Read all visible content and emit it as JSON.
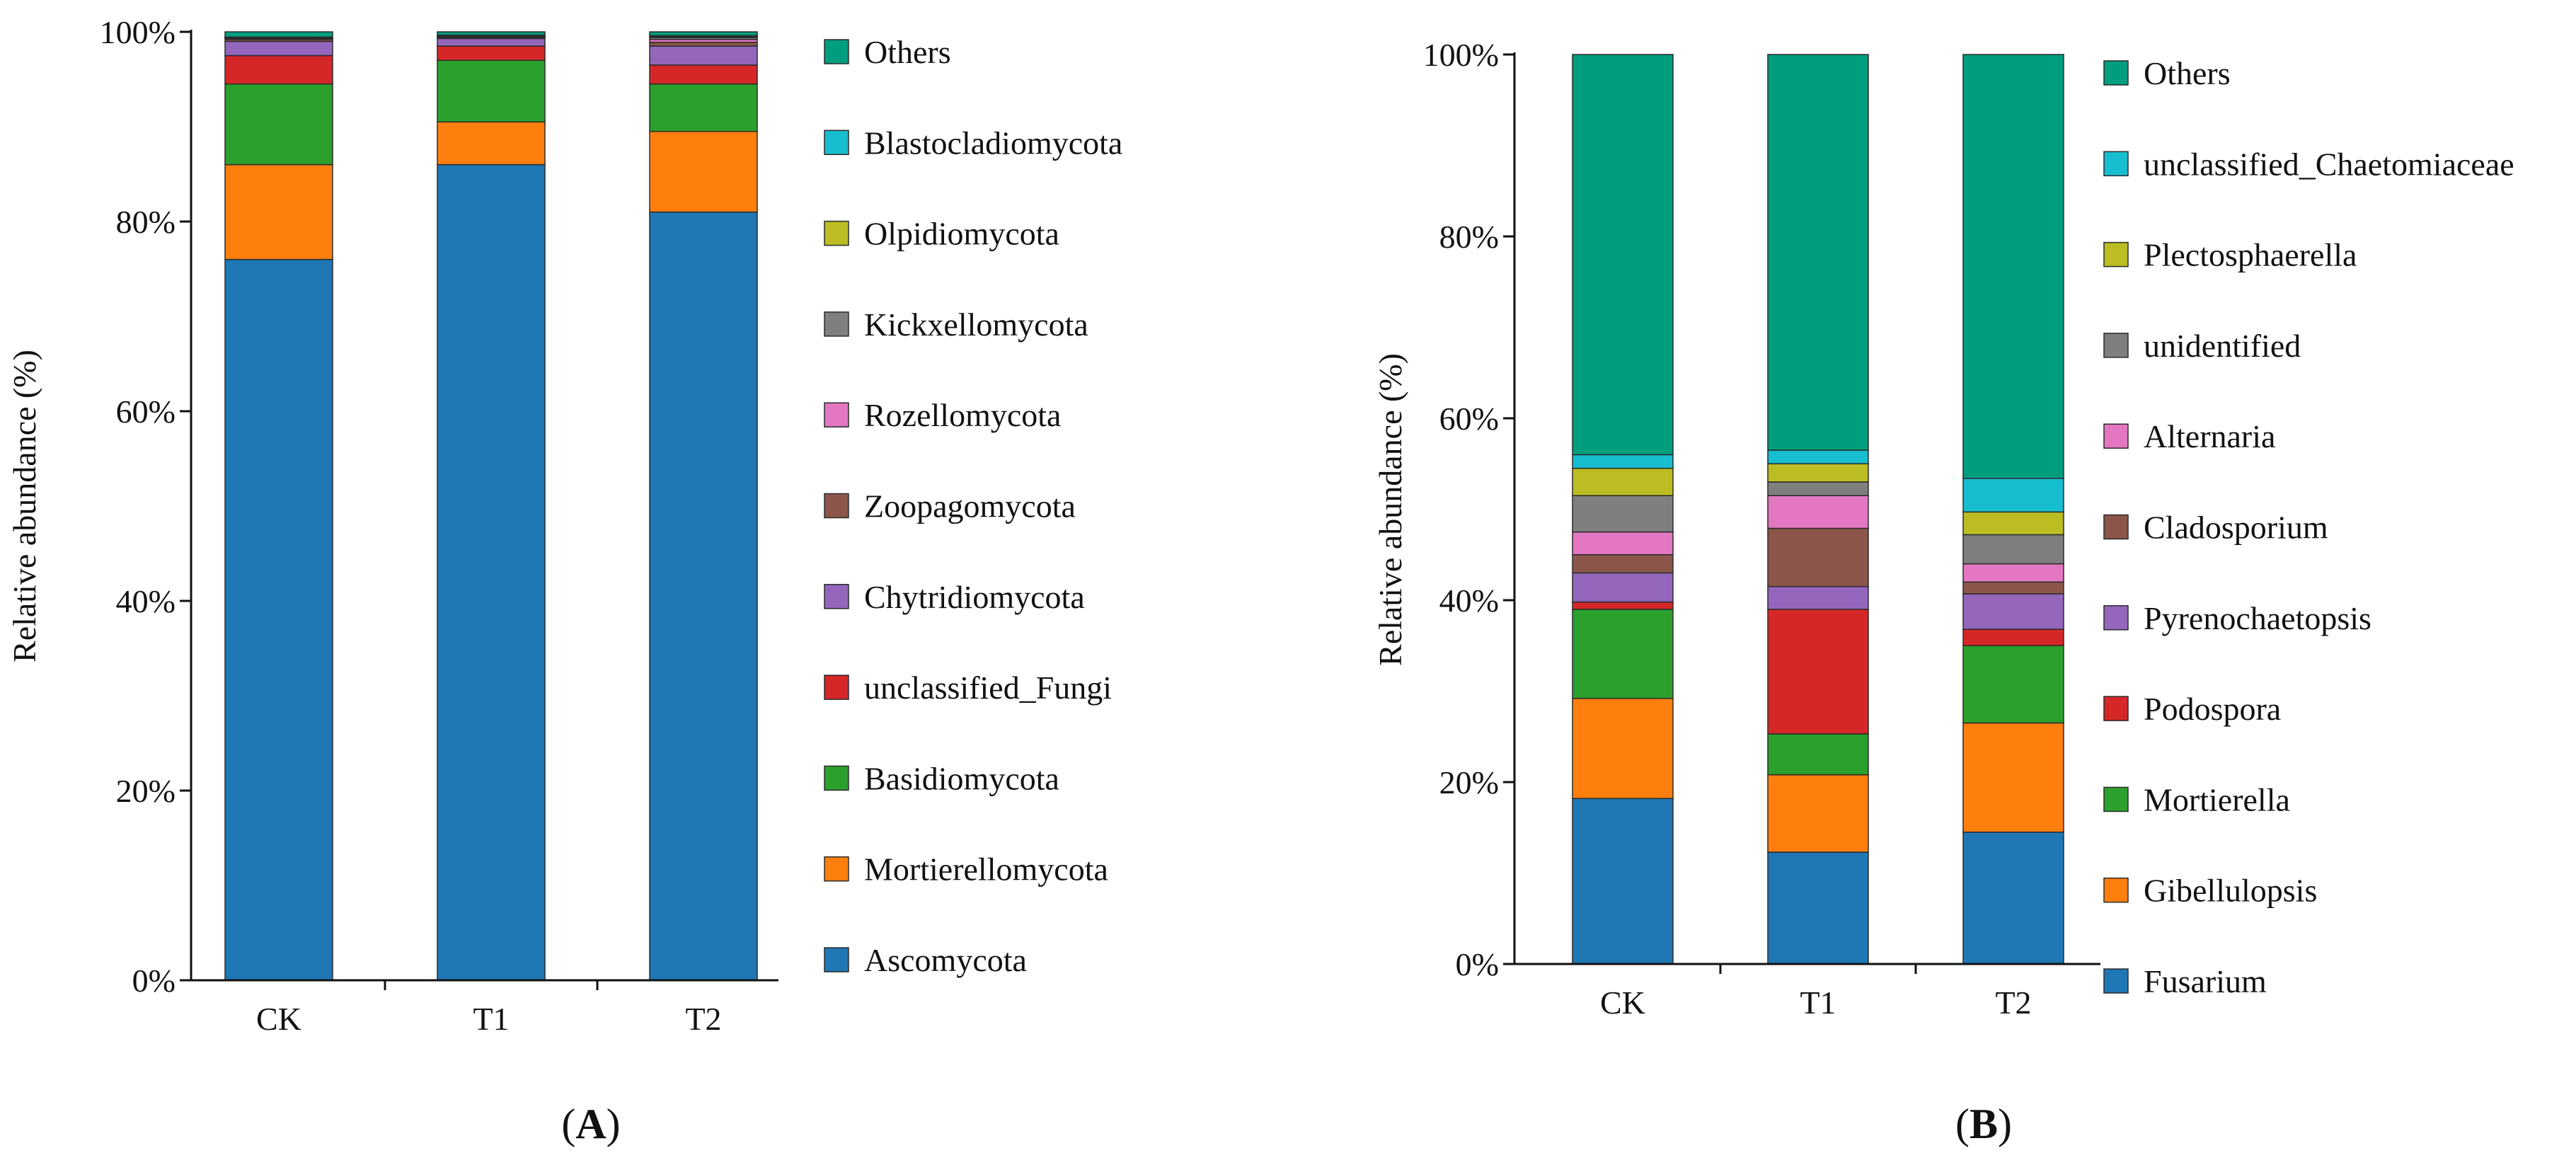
{
  "figure": {
    "panel_labels": [
      {
        "open": "(",
        "letter": "A",
        "close": ")"
      },
      {
        "open": "(",
        "letter": "B",
        "close": ")"
      }
    ]
  },
  "chart_data": [
    {
      "type": "bar",
      "stacked": true,
      "panel": "A",
      "ylabel": "Relative abundance (%)",
      "xlabel": "",
      "ylim": [
        0,
        100
      ],
      "yticks": [
        "0%",
        "20%",
        "40%",
        "60%",
        "80%",
        "100%"
      ],
      "categories": [
        "CK",
        "T1",
        "T2"
      ],
      "legend_position": "right",
      "series": [
        {
          "name": "Ascomycota",
          "color": "#1f77b4",
          "values": [
            76.0,
            86.0,
            81.0
          ]
        },
        {
          "name": "Mortierellomycota",
          "color": "#ff7f0e",
          "values": [
            10.0,
            4.5,
            8.5
          ]
        },
        {
          "name": "Basidiomycota",
          "color": "#2ca02c",
          "values": [
            8.5,
            6.5,
            5.0
          ]
        },
        {
          "name": "unclassified_Fungi",
          "color": "#d62728",
          "values": [
            3.0,
            1.5,
            2.0
          ]
        },
        {
          "name": "Chytridiomycota",
          "color": "#9467bd",
          "values": [
            1.5,
            0.8,
            2.0
          ]
        },
        {
          "name": "Zoopagomycota",
          "color": "#8c564b",
          "values": [
            0.2,
            0.1,
            0.4
          ]
        },
        {
          "name": "Rozellomycota",
          "color": "#e377c2",
          "values": [
            0.1,
            0.1,
            0.3
          ]
        },
        {
          "name": "Kickxellomycota",
          "color": "#7f7f7f",
          "values": [
            0.05,
            0.05,
            0.2
          ]
        },
        {
          "name": "Olpidiomycota",
          "color": "#bcbd22",
          "values": [
            0.05,
            0.05,
            0.1
          ]
        },
        {
          "name": "Blastocladiomycota",
          "color": "#17becf",
          "values": [
            0.05,
            0.05,
            0.1
          ]
        },
        {
          "name": "Others",
          "color": "#009e7f",
          "values": [
            0.55,
            0.35,
            0.4
          ]
        }
      ]
    },
    {
      "type": "bar",
      "stacked": true,
      "panel": "B",
      "ylabel": "Relative abundance (%)",
      "xlabel": "",
      "ylim": [
        0,
        100
      ],
      "yticks": [
        "0%",
        "20%",
        "40%",
        "60%",
        "80%",
        "100%"
      ],
      "categories": [
        "CK",
        "T1",
        "T2"
      ],
      "legend_position": "right",
      "series": [
        {
          "name": "Fusarium",
          "color": "#1f77b4",
          "values": [
            18.2,
            12.3,
            14.5
          ]
        },
        {
          "name": "Gibellulopsis",
          "color": "#ff7f0e",
          "values": [
            11.0,
            8.5,
            12.0
          ]
        },
        {
          "name": "Mortierella",
          "color": "#2ca02c",
          "values": [
            9.8,
            4.5,
            8.5
          ]
        },
        {
          "name": "Podospora",
          "color": "#d62728",
          "values": [
            0.8,
            13.7,
            1.8
          ]
        },
        {
          "name": "Pyrenochaetopsis",
          "color": "#9467bd",
          "values": [
            3.2,
            2.5,
            3.9
          ]
        },
        {
          "name": "Cladosporium",
          "color": "#8c564b",
          "values": [
            2.0,
            6.4,
            1.3
          ]
        },
        {
          "name": "Alternaria",
          "color": "#e377c2",
          "values": [
            2.5,
            3.6,
            2.0
          ]
        },
        {
          "name": "unidentified",
          "color": "#7f7f7f",
          "values": [
            4.0,
            1.5,
            3.2
          ]
        },
        {
          "name": "Plectosphaerella",
          "color": "#bcbd22",
          "values": [
            3.0,
            2.0,
            2.5
          ]
        },
        {
          "name": "unclassified_Chaetomiaceae",
          "color": "#17becf",
          "values": [
            1.5,
            1.5,
            3.7
          ]
        },
        {
          "name": "Others",
          "color": "#009e7f",
          "values": [
            44.0,
            43.5,
            46.6
          ]
        }
      ]
    }
  ]
}
